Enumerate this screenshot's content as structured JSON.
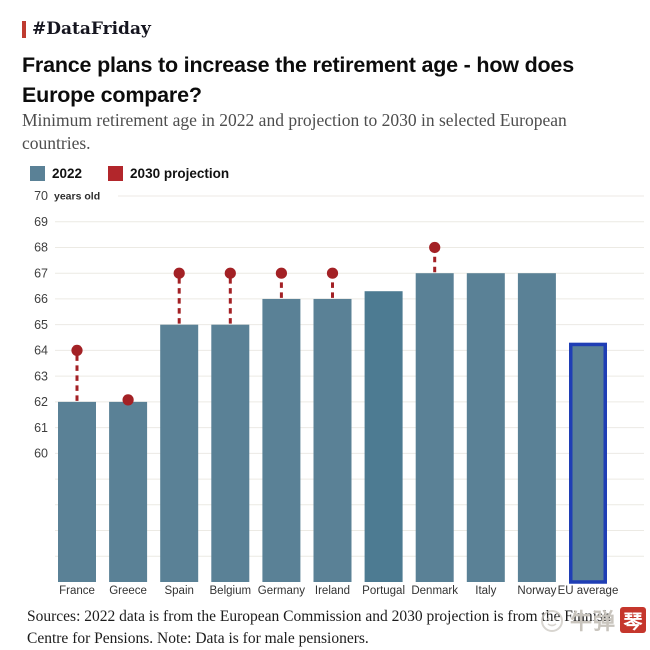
{
  "page": {
    "tag": "#DataFriday",
    "title": "France plans to increase the retirement age - how does Europe compare?",
    "subtitle": "Minimum retirement age in 2022 and projection to 2030 in selected European countries.",
    "source": "Sources: 2022 data is from the European Commission and 2030 projection is from the Finnish Centre for Pensions. Note: Data is for male pensioners.",
    "watermark": {
      "text": "牛弹",
      "badge": "琴"
    }
  },
  "legend": [
    {
      "label": "2022",
      "color": "#5a8196"
    },
    {
      "label": "2030 projection",
      "color": "#b2262b"
    }
  ],
  "colors": {
    "bar": "#5a8196",
    "bar_portugal": "#4d7b92",
    "eu_highlight_border": "#1f3eb5",
    "projection": "#a32125",
    "grid": "#eceae4",
    "axis_text": "#3f3f3f",
    "accent_red": "#bf3b30"
  },
  "chart_data": {
    "type": "bar",
    "title": "France plans to increase the retirement age - how does Europe compare?",
    "subtitle": "Minimum retirement age in 2022 and projection to 2030 in selected European countries.",
    "unit_label": "years old",
    "categories": [
      "France",
      "Greece",
      "Spain",
      "Belgium",
      "Germany",
      "Ireland",
      "Portugal",
      "Denmark",
      "Italy",
      "Norway",
      "EU average"
    ],
    "series": [
      {
        "name": "2022",
        "values": [
          62,
          62,
          65,
          65,
          66,
          66,
          66.3,
          67,
          67,
          67,
          64.3
        ]
      },
      {
        "name": "2030 projection",
        "values": [
          64,
          62,
          67,
          67,
          67,
          67,
          null,
          68,
          null,
          null,
          null
        ]
      }
    ],
    "ylim": [
      55,
      70
    ],
    "yticks": [
      60,
      61,
      62,
      63,
      64,
      65,
      66,
      67,
      68,
      69,
      70
    ],
    "grid": true,
    "legend_position": "top-left",
    "highlight_category": "EU average",
    "darker_category": "Portugal"
  }
}
